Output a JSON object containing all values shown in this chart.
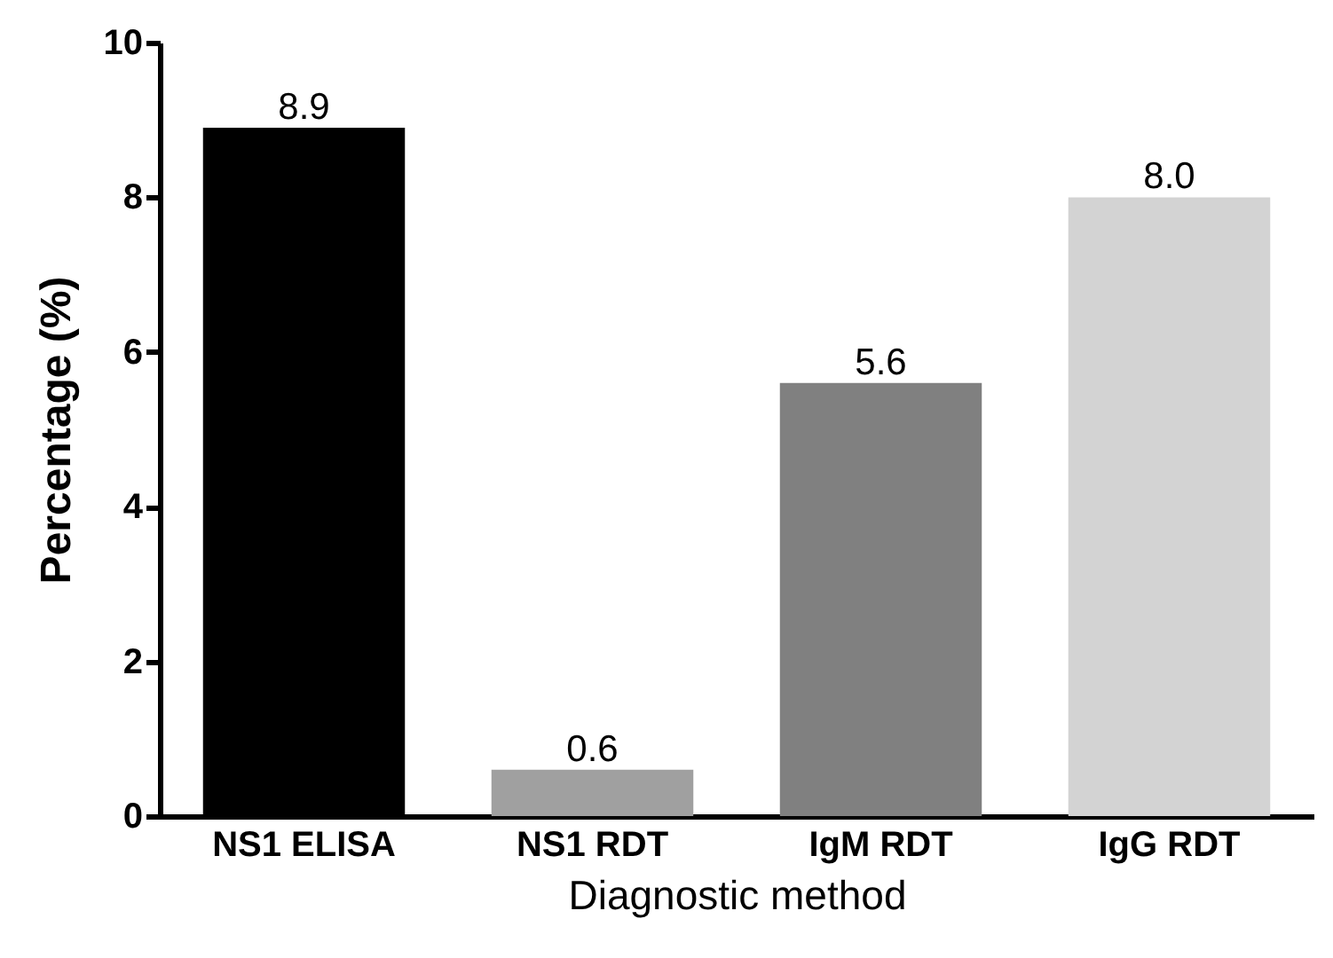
{
  "chart_data": {
    "type": "bar",
    "xlabel": "Diagnostic method",
    "ylabel": "Percentage (%)",
    "categories": [
      "NS1 ELISA",
      "NS1 RDT",
      "IgM RDT",
      "IgG RDT"
    ],
    "values": [
      8.9,
      0.6,
      5.6,
      8.0
    ],
    "colors": [
      "#000000",
      "#a0a0a0",
      "#808080",
      "#d3d3d3"
    ],
    "value_labels": [
      "8.9",
      "0.6",
      "5.6",
      "8.0"
    ],
    "ylim": [
      0,
      10
    ],
    "yticks": [
      0,
      2,
      4,
      6,
      8,
      10
    ]
  }
}
